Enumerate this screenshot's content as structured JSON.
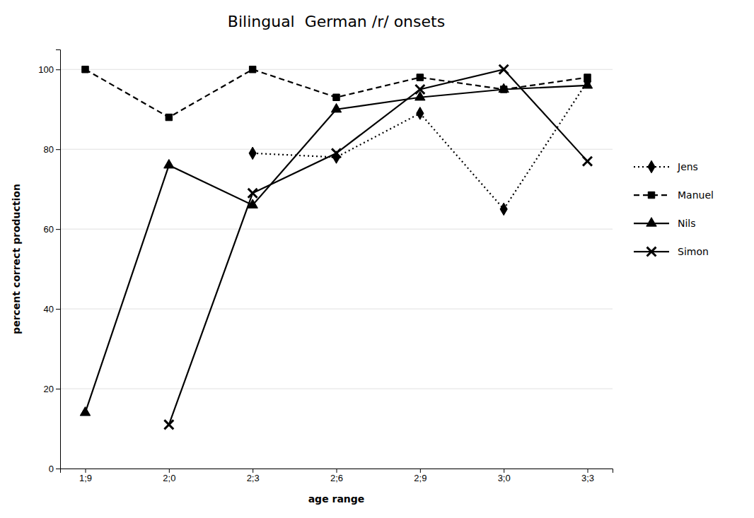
{
  "chart_data": {
    "type": "line",
    "title": "Bilingual  German /r/ onsets",
    "x_label": "age range",
    "y_label": "percent correct production",
    "categories": [
      "1;9",
      "2;0",
      "2;3",
      "2;6",
      "2;9",
      "3;0",
      "3;3"
    ],
    "series": [
      {
        "name": "Jens",
        "color": "black",
        "marker": "diamond",
        "line_style": "dotted",
        "values": [
          null,
          null,
          79,
          78,
          89,
          65,
          97
        ]
      },
      {
        "name": "Manuel",
        "color": "black",
        "marker": "square",
        "line_style": "dashed",
        "values": [
          100,
          88,
          100,
          93,
          98,
          95,
          98
        ]
      },
      {
        "name": "Nils",
        "color": "black",
        "marker": "triangle",
        "line_style": "solid",
        "values": [
          14,
          76,
          66,
          90,
          93,
          95,
          96
        ]
      },
      {
        "name": "Simon",
        "color": "black",
        "marker": "x",
        "line_style": "solid",
        "values": [
          null,
          11,
          69,
          79,
          95,
          100,
          77
        ]
      }
    ],
    "ylim": [
      0,
      105
    ],
    "yticks": [
      0,
      20,
      40,
      60,
      80,
      100
    ],
    "grid": true,
    "legend": "right"
  }
}
